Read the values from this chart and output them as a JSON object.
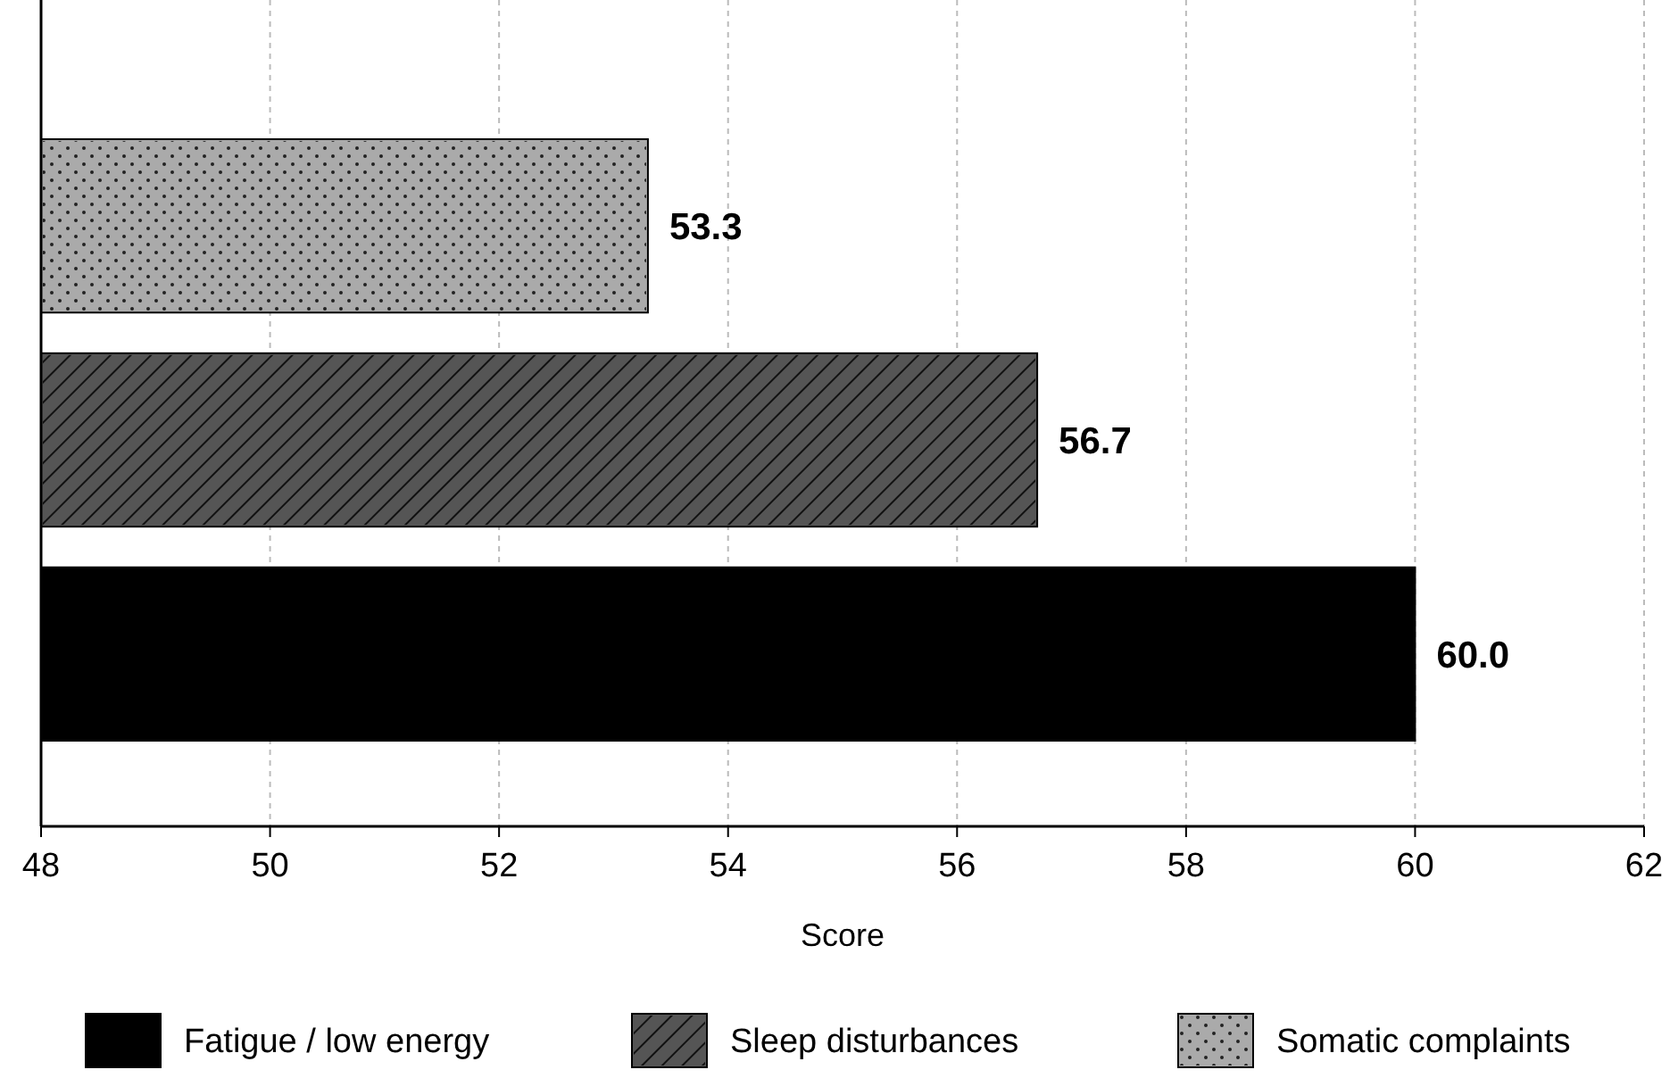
{
  "chart_data": {
    "type": "bar",
    "orientation": "horizontal",
    "xlabel": "Score",
    "categories": [
      null,
      null,
      null
    ],
    "series": [
      {
        "name": "Fatigue / low energy",
        "color": "#000000",
        "values": [
          null,
          null,
          60.0
        ],
        "value_labels": [
          null,
          null,
          "60.0"
        ]
      },
      {
        "name": "Sleep disturbances",
        "color": "#555555",
        "values": [
          null,
          56.7,
          null
        ],
        "value_labels": [
          null,
          "56.7",
          null
        ]
      },
      {
        "name": "Somatic complaints",
        "color": "#aaaaaa",
        "values": [
          53.3,
          null,
          null
        ],
        "value_labels": [
          "53.3",
          null,
          null
        ]
      }
    ],
    "xlim": [
      48,
      62
    ],
    "xticks": [
      48,
      50,
      52,
      54,
      56,
      58,
      60,
      62
    ],
    "grid": "x",
    "legend": "bottom"
  }
}
